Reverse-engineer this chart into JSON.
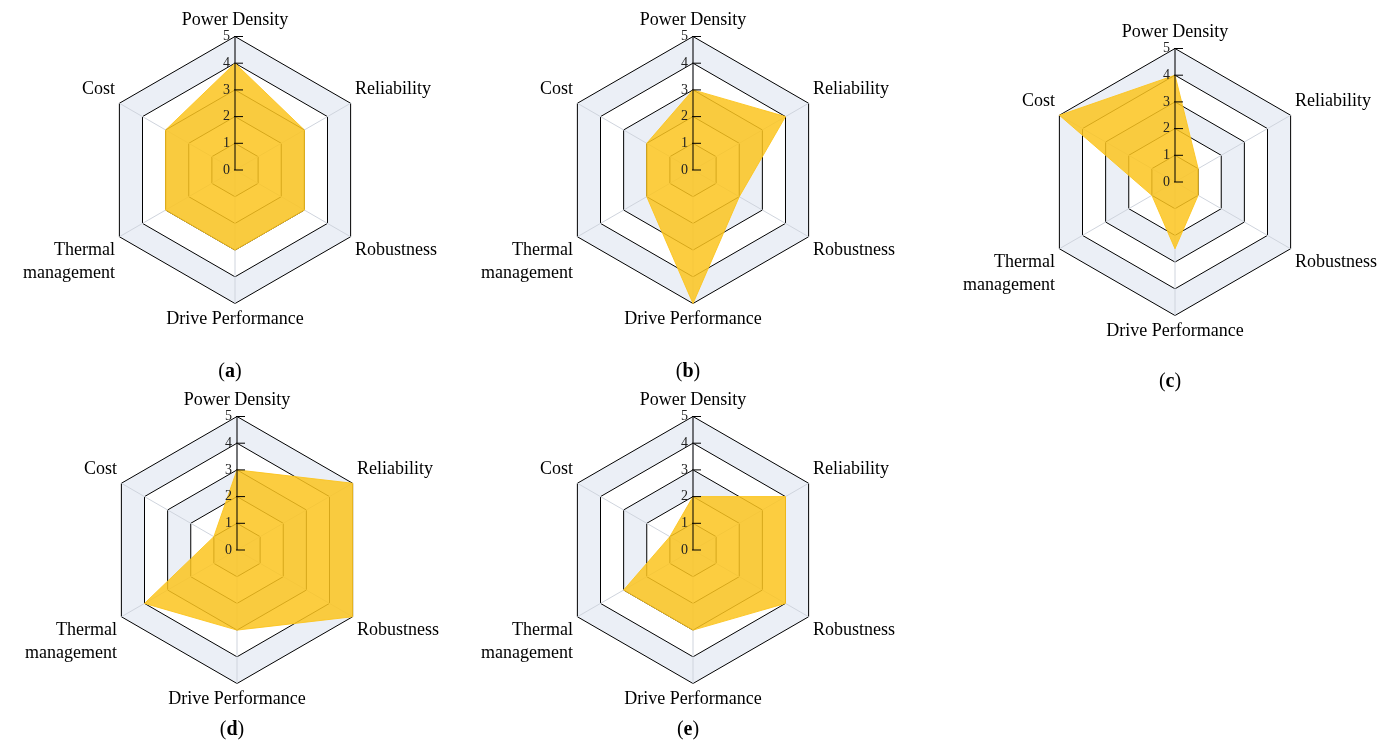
{
  "chart_data": [
    {
      "type": "radar",
      "title": "(a)",
      "categories": [
        "Power Density",
        "Reliability",
        "Robustness",
        "Drive Performance",
        "Thermal management",
        "Cost"
      ],
      "series": [
        {
          "color": "#fcc41e",
          "values": [
            4,
            3,
            3,
            3,
            3,
            3
          ]
        }
      ],
      "ylim": [
        0,
        5
      ],
      "yticks": [
        0,
        1,
        2,
        3,
        4,
        5
      ],
      "grid": true,
      "legend": false
    },
    {
      "type": "radar",
      "title": "(b)",
      "categories": [
        "Power Density",
        "Reliability",
        "Robustness",
        "Drive Performance",
        "Thermal management",
        "Cost"
      ],
      "series": [
        {
          "color": "#fcc41e",
          "values": [
            3,
            4,
            2,
            5,
            2,
            2
          ]
        }
      ],
      "ylim": [
        0,
        5
      ],
      "yticks": [
        0,
        1,
        2,
        3,
        4,
        5
      ],
      "grid": true,
      "legend": false
    },
    {
      "type": "radar",
      "title": "(c)",
      "categories": [
        "Power Density",
        "Reliability",
        "Robustness",
        "Drive Performance",
        "Thermal management",
        "Cost"
      ],
      "series": [
        {
          "color": "#fcc41e",
          "values": [
            4,
            1,
            1,
            2.5,
            1,
            5
          ]
        }
      ],
      "ylim": [
        0,
        5
      ],
      "yticks": [
        0,
        1,
        2,
        3,
        4,
        5
      ],
      "grid": true,
      "legend": false
    },
    {
      "type": "radar",
      "title": "(d)",
      "categories": [
        "Power Density",
        "Reliability",
        "Robustness",
        "Drive Performance",
        "Thermal management",
        "Cost"
      ],
      "series": [
        {
          "color": "#fcc41e",
          "values": [
            3,
            5,
            5,
            3,
            4,
            1
          ]
        }
      ],
      "ylim": [
        0,
        5
      ],
      "yticks": [
        0,
        1,
        2,
        3,
        4,
        5
      ],
      "grid": true,
      "legend": false
    },
    {
      "type": "radar",
      "title": "(e)",
      "categories": [
        "Power Density",
        "Reliability",
        "Robustness",
        "Drive Performance",
        "Thermal management",
        "Cost"
      ],
      "series": [
        {
          "color": "#fcc41e",
          "values": [
            2,
            4,
            4,
            3,
            3,
            1
          ]
        }
      ],
      "ylim": [
        0,
        5
      ],
      "yticks": [
        0,
        1,
        2,
        3,
        4,
        5
      ],
      "grid": true,
      "legend": false
    }
  ]
}
